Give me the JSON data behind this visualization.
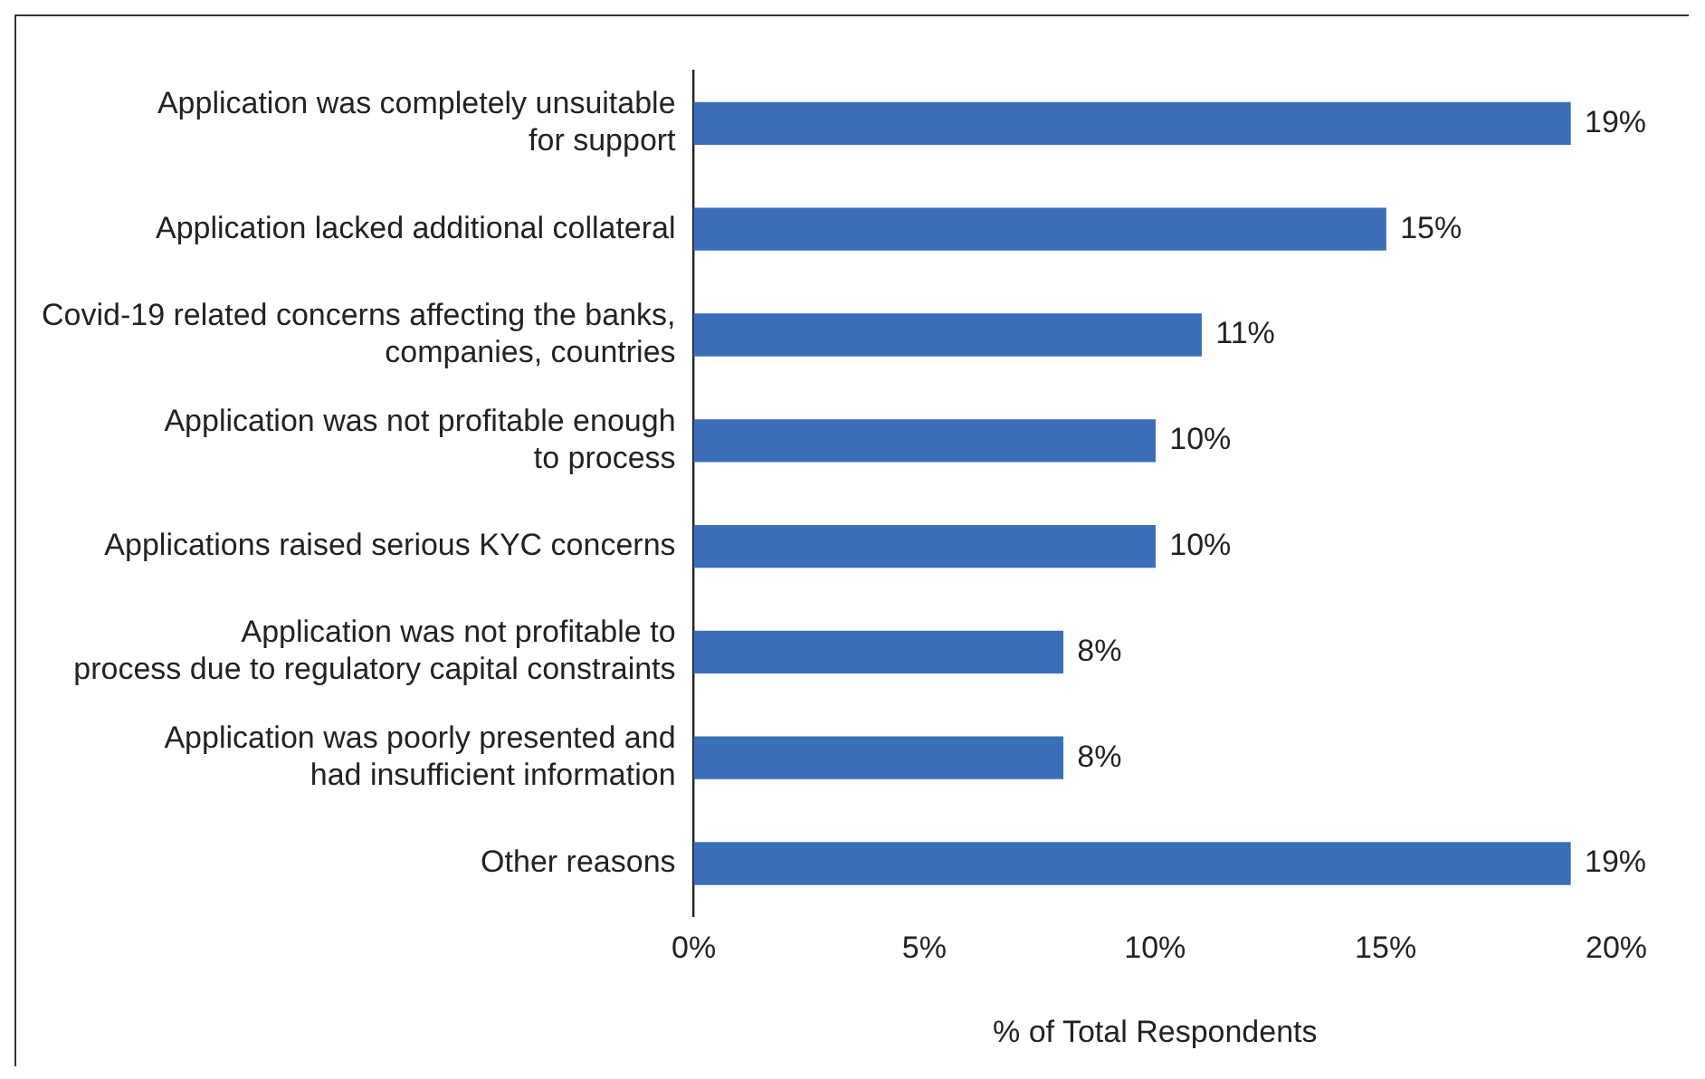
{
  "chart_data": {
    "type": "bar",
    "orientation": "horizontal",
    "categories": [
      "Application was completely unsuitable\nfor support",
      "Application lacked additional collateral",
      "Covid-19 related concerns affecting the banks,\ncompanies, countries",
      "Application was not profitable enough\nto process",
      "Applications raised serious KYC concerns",
      "Application was not profitable to\nprocess due to regulatory capital constraints",
      "Application was poorly presented and\nhad insufficient information",
      "Other reasons"
    ],
    "values": [
      19,
      15,
      11,
      10,
      10,
      8,
      8,
      19
    ],
    "value_labels": [
      "19%",
      "15%",
      "11%",
      "10%",
      "10%",
      "8%",
      "8%",
      "19%"
    ],
    "color": "#3a6eb8",
    "xlim": [
      0,
      20
    ],
    "xticks": [
      {
        "value": 0,
        "label": "0%"
      },
      {
        "value": 5,
        "label": "5%"
      },
      {
        "value": 10,
        "label": "10%"
      },
      {
        "value": 15,
        "label": "15%"
      },
      {
        "value": 20,
        "label": "20%"
      }
    ],
    "xlabel": "% of Total Respondents",
    "grid": false,
    "legend": false
  }
}
